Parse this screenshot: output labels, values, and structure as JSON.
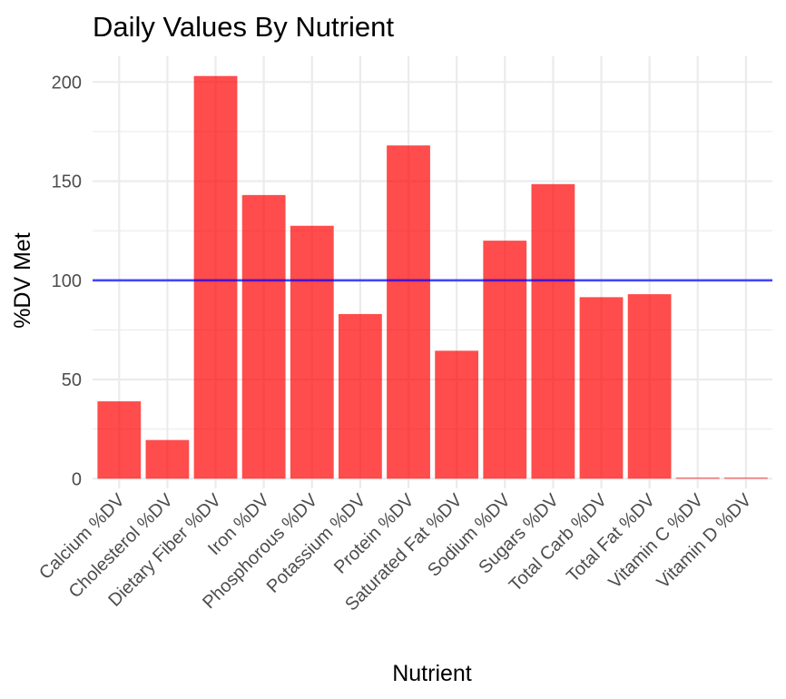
{
  "chart_data": {
    "type": "bar",
    "title": "Daily Values By Nutrient",
    "xlabel": "Nutrient",
    "ylabel": "%DV Met",
    "categories": [
      "Calcium %DV",
      "Cholesterol %DV",
      "Dietary Fiber %DV",
      "Iron %DV",
      "Phosphorous %DV",
      "Potassium %DV",
      "Protein %DV",
      "Saturated Fat %DV",
      "Sodium %DV",
      "Sugars %DV",
      "Total Carb %DV",
      "Total Fat %DV",
      "Vitamin C %DV",
      "Vitamin D %DV"
    ],
    "values": [
      39,
      19.5,
      203,
      143,
      127.5,
      83,
      168,
      64.5,
      120,
      148.5,
      91.5,
      93,
      0.5,
      0.5
    ],
    "ylim": [
      -5,
      210
    ],
    "yticks": [
      0,
      50,
      100,
      150,
      200
    ],
    "reference_line": {
      "y": 100,
      "color": "#0000ff"
    },
    "bar_color": "#ff0000",
    "grid": true,
    "legend": "none"
  }
}
